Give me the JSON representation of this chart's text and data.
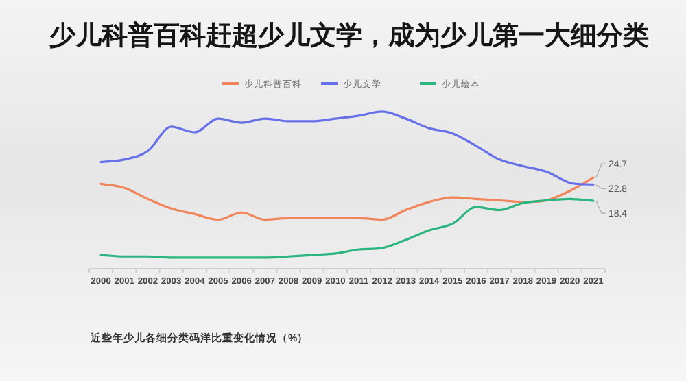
{
  "chart_data": {
    "type": "line",
    "title": "少儿科普百科赶超少儿文学，成为少儿第一大细分类",
    "subtitle": "近些年少儿各细分类码洋比重变化情况（%）",
    "categories": [
      "2000",
      "2001",
      "2002",
      "2003",
      "2004",
      "2005",
      "2006",
      "2007",
      "2008",
      "2009",
      "2010",
      "2011",
      "2012",
      "2013",
      "2014",
      "2015",
      "2016",
      "2017",
      "2018",
      "2019",
      "2020",
      "2021"
    ],
    "series": [
      {
        "name": "少儿科普百科",
        "color": "#f0845a",
        "values": [
          23.0,
          21.9,
          18.9,
          16.3,
          14.8,
          13.3,
          15.2,
          13.3,
          13.7,
          13.7,
          13.7,
          13.7,
          13.3,
          15.9,
          18.1,
          19.3,
          18.9,
          18.5,
          18.1,
          18.5,
          21.1,
          24.7
        ],
        "value_labels": [
          null,
          null,
          null,
          null,
          null,
          null,
          null,
          null,
          null,
          null,
          null,
          null,
          null,
          null,
          null,
          null,
          null,
          null,
          null,
          null,
          null,
          "24.7"
        ]
      },
      {
        "name": "少儿文学",
        "color": "#6670e8",
        "values": [
          28.9,
          29.6,
          31.9,
          38.5,
          37.0,
          40.7,
          39.6,
          40.7,
          40.0,
          40.0,
          40.7,
          41.5,
          42.6,
          40.7,
          38.1,
          36.7,
          33.3,
          29.6,
          27.8,
          26.3,
          23.3,
          22.8
        ],
        "value_labels": [
          null,
          null,
          null,
          null,
          null,
          null,
          null,
          null,
          null,
          null,
          null,
          null,
          null,
          null,
          null,
          null,
          null,
          null,
          null,
          null,
          null,
          "22.8"
        ]
      },
      {
        "name": "少儿绘本",
        "color": "#2bb57f",
        "values": [
          3.7,
          3.3,
          3.3,
          3.0,
          3.0,
          3.0,
          3.0,
          3.0,
          3.3,
          3.7,
          4.1,
          5.2,
          5.6,
          7.8,
          10.4,
          12.2,
          16.7,
          15.9,
          17.8,
          18.5,
          18.9,
          18.4
        ],
        "value_labels": [
          null,
          null,
          null,
          null,
          null,
          null,
          null,
          null,
          null,
          null,
          null,
          null,
          null,
          null,
          null,
          null,
          null,
          null,
          null,
          null,
          null,
          "18.4"
        ]
      }
    ],
    "tick_labels": "x",
    "grid": false,
    "legend": "top",
    "marker": "none",
    "line_style": "solid"
  }
}
